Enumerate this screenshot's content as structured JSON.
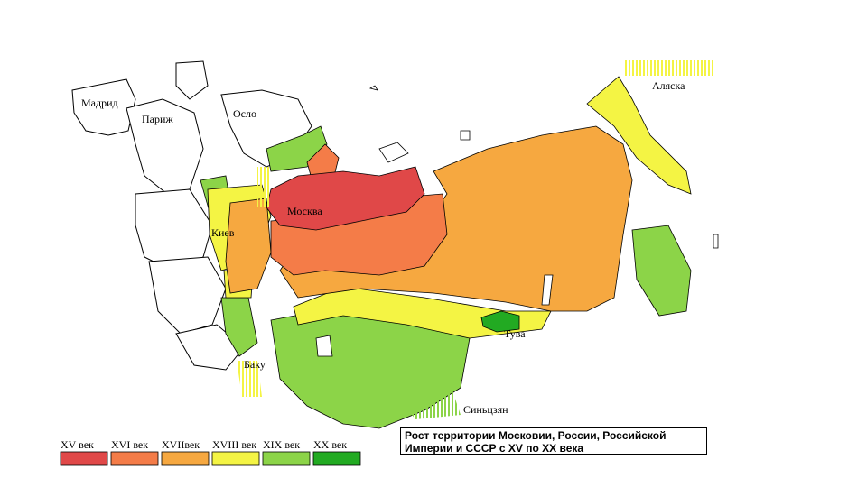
{
  "map": {
    "cities": [
      {
        "id": "madrid",
        "label": "Мадрид"
      },
      {
        "id": "paris",
        "label": "Париж"
      },
      {
        "id": "oslo",
        "label": "Осло"
      },
      {
        "id": "moscow",
        "label": "Москва"
      },
      {
        "id": "kiev",
        "label": "Киев"
      },
      {
        "id": "baku",
        "label": "Баку"
      },
      {
        "id": "tuva",
        "label": "Тува"
      },
      {
        "id": "xinjiang",
        "label": "Синьцзян"
      },
      {
        "id": "alaska",
        "label": "Аляска"
      }
    ]
  },
  "legend": {
    "items": [
      {
        "label": "XV век",
        "color": "#e04848"
      },
      {
        "label": "XVI век",
        "color": "#f47c48"
      },
      {
        "label": "XVIIвек",
        "color": "#f6a840"
      },
      {
        "label": "XVIII век",
        "color": "#f4f444"
      },
      {
        "label": "XIX век",
        "color": "#8cd448"
      },
      {
        "label": "XX век",
        "color": "#22aa22"
      }
    ]
  },
  "title": {
    "line1": "Рост территории Московии, России, Российской",
    "line2": "Империи и СССР с XV по XX века"
  }
}
